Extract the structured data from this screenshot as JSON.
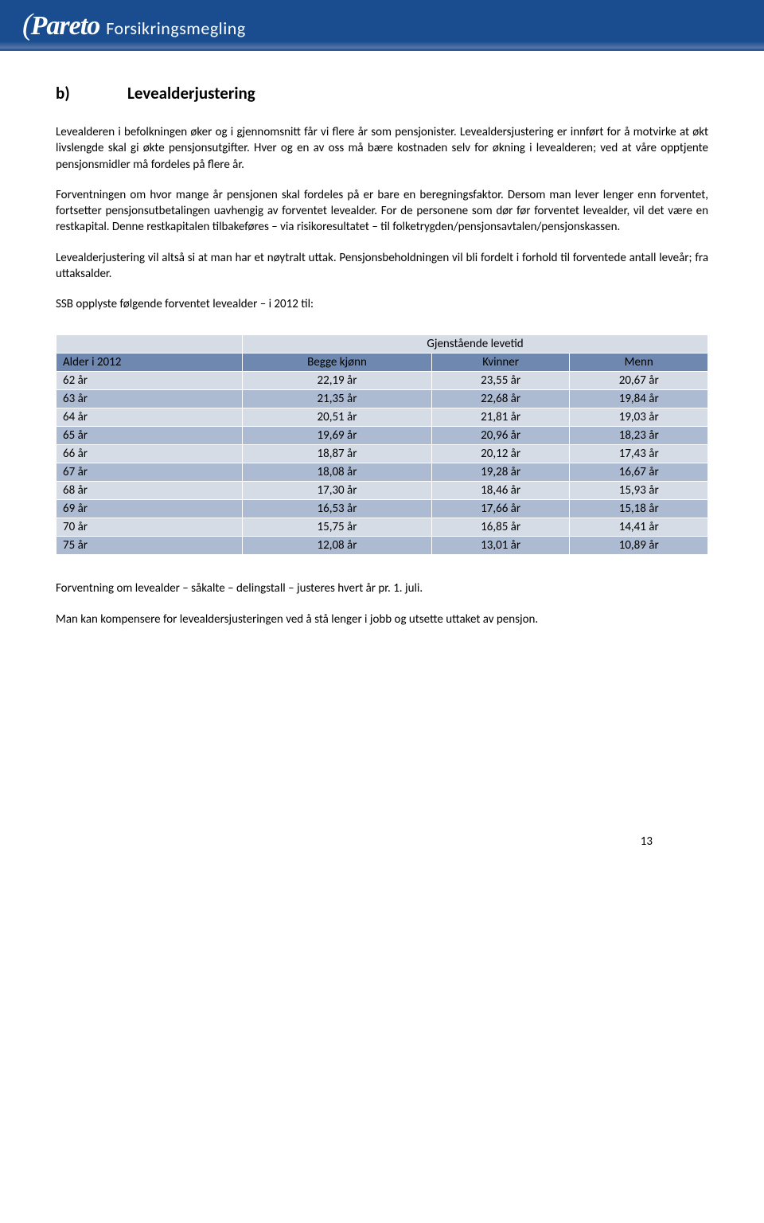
{
  "header": {
    "logo_main": "Pareto",
    "logo_sub": "Forsikringsmegling"
  },
  "body": {
    "section_label": "b)",
    "section_title": "Levealderjustering",
    "p1": "Levealderen i befolkningen øker og i gjennomsnitt får vi flere år som pensjonister. Levealdersjustering er innført for å motvirke at økt livslengde skal gi økte pensjonsutgifter. Hver og en av oss må bære kostnaden selv for økning i levealderen; ved at våre opptjente pensjonsmidler må fordeles på flere år.",
    "p2": "Forventningen om hvor mange år pensjonen skal fordeles på er bare en beregningsfaktor. Dersom man lever lenger enn forventet, fortsetter pensjonsutbetalingen uavhengig av forventet levealder. For de personene som dør før forventet levealder, vil det være en restkapital. Denne restkapitalen tilbakeføres – via risikoresultatet – til folketrygden/pensjonsavtalen/pensjonskassen.",
    "p3": "Levealderjustering vil altså si at man har et nøytralt uttak. Pensjonsbeholdningen vil bli fordelt i forhold til forventede antall leveår; fra uttaksalder.",
    "p4": "SSB opplyste følgende forventet levealder – i 2012 til:",
    "p5": "Forventning om levealder – såkalte – delingstall – justeres hvert år pr. 1. juli.",
    "p6": "Man kan kompensere for levealdersjusteringen ved å stå lenger i jobb og utsette uttaket av pensjon."
  },
  "table": {
    "header_span": "Gjenstående levetid",
    "columns": [
      "Alder i 2012",
      "Begge kjønn",
      "Kvinner",
      "Menn"
    ],
    "column_widths_pct": [
      25,
      25,
      25,
      25
    ],
    "header_bg_top": "#d6dce6",
    "header_bg_second": "#6e88b0",
    "row_bg_light": "#d6dce6",
    "row_bg_dark": "#adbbd2",
    "border_color": "#ffffff",
    "font_size_pt": 11,
    "rows": [
      [
        "62 år",
        "22,19 år",
        "23,55 år",
        "20,67 år"
      ],
      [
        "63 år",
        "21,35 år",
        "22,68 år",
        "19,84 år"
      ],
      [
        "64 år",
        "20,51 år",
        "21,81 år",
        "19,03 år"
      ],
      [
        "65 år",
        "19,69 år",
        "20,96 år",
        "18,23 år"
      ],
      [
        "66 år",
        "18,87 år",
        "20,12 år",
        "17,43 år"
      ],
      [
        "67 år",
        "18,08 år",
        "19,28 år",
        "16,67 år"
      ],
      [
        "68 år",
        "17,30 år",
        "18,46 år",
        "15,93 år"
      ],
      [
        "69 år",
        "16,53 år",
        "17,66 år",
        "15,18 år"
      ],
      [
        "70 år",
        "15,75 år",
        "16,85 år",
        "14,41 år"
      ],
      [
        "75 år",
        "12,08 år",
        "13,01 år",
        "10,89 år"
      ]
    ]
  },
  "page_number": "13"
}
